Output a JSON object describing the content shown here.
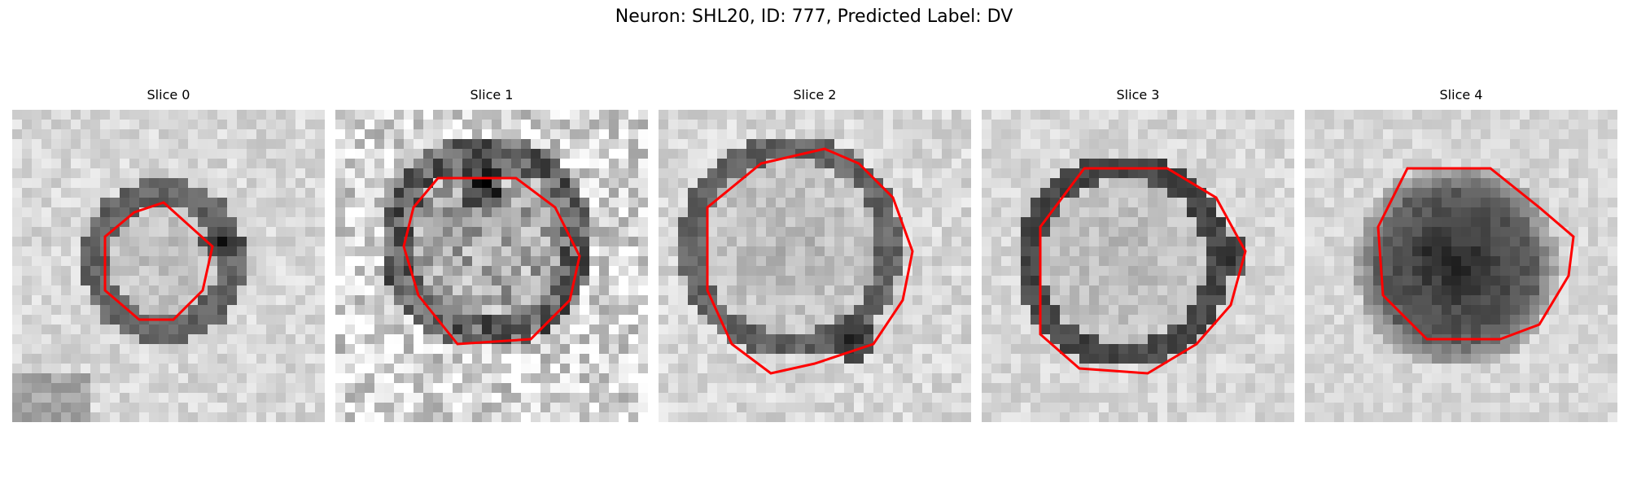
{
  "figure": {
    "title": "Neuron: SHL20, ID: 777, Predicted Label: DV"
  },
  "panels": [
    {
      "title": "Slice 0",
      "blob_style": "ring",
      "outline_color": "#ff0000"
    },
    {
      "title": "Slice 1",
      "blob_style": "noisy",
      "outline_color": "#ff0000"
    },
    {
      "title": "Slice 2",
      "blob_style": "ring-large",
      "outline_color": "#ff0000"
    },
    {
      "title": "Slice 3",
      "blob_style": "ring-dark",
      "outline_color": "#ff0000"
    },
    {
      "title": "Slice 4",
      "blob_style": "dark",
      "outline_color": "#ff0000"
    }
  ]
}
